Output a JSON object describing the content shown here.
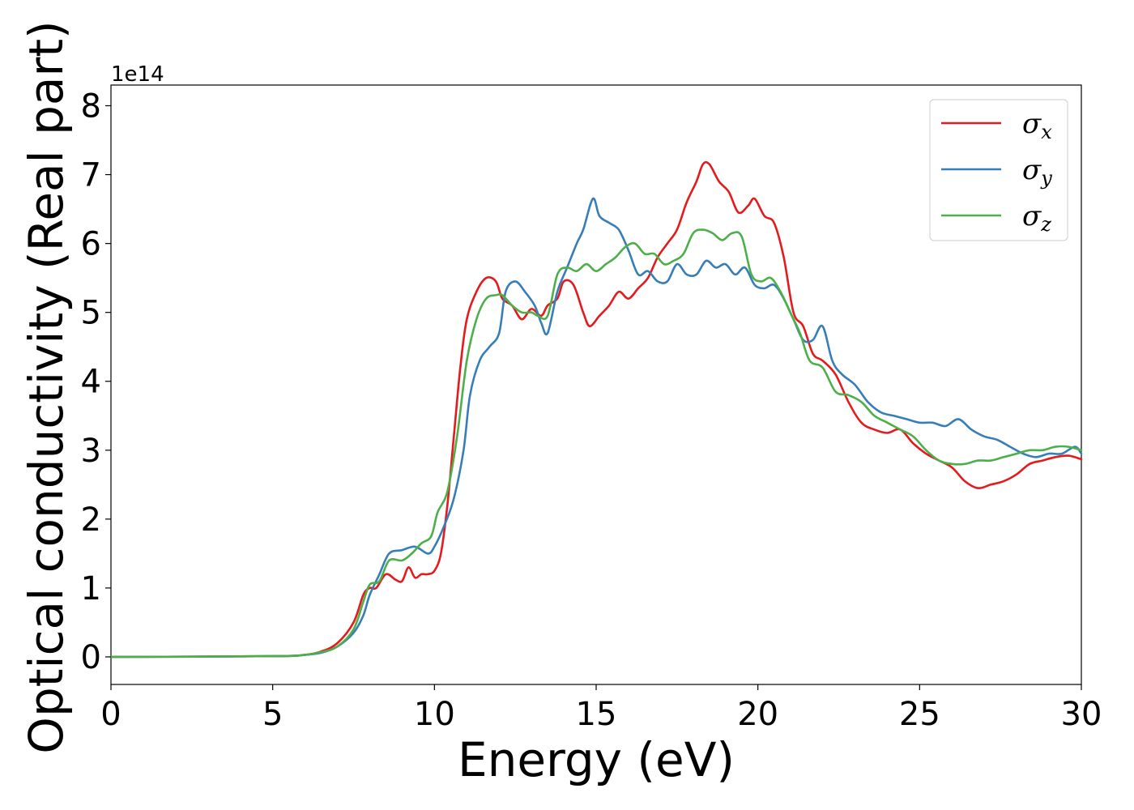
{
  "chart_data": {
    "type": "line",
    "xlabel": "Energy (eV)",
    "ylabel": "Optical conductivity (Real part)",
    "y_offset_label": "1e14",
    "xlim": [
      0,
      30
    ],
    "ylim": [
      -0.4,
      8.3
    ],
    "x_ticks": [
      "0",
      "5",
      "10",
      "15",
      "20",
      "25",
      "30"
    ],
    "y_ticks": [
      "0",
      "1",
      "2",
      "3",
      "4",
      "5",
      "6",
      "7",
      "8"
    ],
    "grid": false,
    "legend_position": "top-right",
    "series": [
      {
        "name": "σx",
        "symbol": "σ",
        "subscript": "x",
        "color": "#e41a1c",
        "points": [
          [
            0,
            0
          ],
          [
            5,
            0.01
          ],
          [
            6,
            0.03
          ],
          [
            6.5,
            0.08
          ],
          [
            7,
            0.2
          ],
          [
            7.5,
            0.5
          ],
          [
            7.8,
            0.9
          ],
          [
            8,
            1.0
          ],
          [
            8.2,
            1.0
          ],
          [
            8.5,
            1.2
          ],
          [
            8.8,
            1.12
          ],
          [
            9,
            1.1
          ],
          [
            9.2,
            1.3
          ],
          [
            9.4,
            1.15
          ],
          [
            9.6,
            1.2
          ],
          [
            9.8,
            1.2
          ],
          [
            10,
            1.25
          ],
          [
            10.2,
            1.5
          ],
          [
            10.4,
            2.2
          ],
          [
            10.6,
            3.2
          ],
          [
            10.8,
            4.2
          ],
          [
            11,
            4.9
          ],
          [
            11.3,
            5.3
          ],
          [
            11.6,
            5.5
          ],
          [
            11.9,
            5.45
          ],
          [
            12.1,
            5.2
          ],
          [
            12.4,
            5.1
          ],
          [
            12.7,
            4.9
          ],
          [
            13,
            5.05
          ],
          [
            13.3,
            4.95
          ],
          [
            13.5,
            5.1
          ],
          [
            13.8,
            5.2
          ],
          [
            14,
            5.45
          ],
          [
            14.3,
            5.4
          ],
          [
            14.6,
            5.0
          ],
          [
            14.8,
            4.8
          ],
          [
            15.1,
            4.95
          ],
          [
            15.4,
            5.1
          ],
          [
            15.7,
            5.3
          ],
          [
            16,
            5.2
          ],
          [
            16.3,
            5.35
          ],
          [
            16.6,
            5.5
          ],
          [
            16.9,
            5.8
          ],
          [
            17.2,
            6.0
          ],
          [
            17.5,
            6.2
          ],
          [
            17.8,
            6.6
          ],
          [
            18.1,
            6.9
          ],
          [
            18.3,
            7.15
          ],
          [
            18.5,
            7.15
          ],
          [
            18.8,
            6.9
          ],
          [
            19.1,
            6.75
          ],
          [
            19.4,
            6.45
          ],
          [
            19.7,
            6.55
          ],
          [
            19.9,
            6.65
          ],
          [
            20.2,
            6.4
          ],
          [
            20.5,
            6.3
          ],
          [
            20.8,
            5.8
          ],
          [
            21.1,
            5.0
          ],
          [
            21.4,
            4.8
          ],
          [
            21.7,
            4.4
          ],
          [
            22,
            4.3
          ],
          [
            22.4,
            4.1
          ],
          [
            22.8,
            3.7
          ],
          [
            23.2,
            3.4
          ],
          [
            23.6,
            3.3
          ],
          [
            24,
            3.25
          ],
          [
            24.4,
            3.3
          ],
          [
            24.8,
            3.1
          ],
          [
            25.2,
            2.95
          ],
          [
            25.6,
            2.85
          ],
          [
            26,
            2.75
          ],
          [
            26.4,
            2.55
          ],
          [
            26.8,
            2.45
          ],
          [
            27.2,
            2.5
          ],
          [
            27.6,
            2.55
          ],
          [
            28,
            2.65
          ],
          [
            28.4,
            2.8
          ],
          [
            28.8,
            2.85
          ],
          [
            29.2,
            2.9
          ],
          [
            29.6,
            2.92
          ],
          [
            30,
            2.87
          ]
        ]
      },
      {
        "name": "σy",
        "symbol": "σ",
        "subscript": "y",
        "color": "#377eb8",
        "points": [
          [
            0,
            0
          ],
          [
            5,
            0.01
          ],
          [
            6,
            0.03
          ],
          [
            6.5,
            0.06
          ],
          [
            7,
            0.15
          ],
          [
            7.5,
            0.35
          ],
          [
            7.8,
            0.6
          ],
          [
            8,
            0.9
          ],
          [
            8.3,
            1.2
          ],
          [
            8.6,
            1.5
          ],
          [
            9,
            1.55
          ],
          [
            9.4,
            1.6
          ],
          [
            9.8,
            1.5
          ],
          [
            10,
            1.6
          ],
          [
            10.3,
            1.9
          ],
          [
            10.6,
            2.3
          ],
          [
            10.9,
            3.0
          ],
          [
            11.1,
            3.8
          ],
          [
            11.4,
            4.3
          ],
          [
            11.7,
            4.5
          ],
          [
            12,
            4.7
          ],
          [
            12.2,
            5.3
          ],
          [
            12.5,
            5.45
          ],
          [
            12.8,
            5.3
          ],
          [
            13.1,
            5.1
          ],
          [
            13.3,
            4.85
          ],
          [
            13.5,
            4.7
          ],
          [
            13.8,
            5.3
          ],
          [
            14.1,
            5.65
          ],
          [
            14.4,
            6.0
          ],
          [
            14.6,
            6.2
          ],
          [
            14.9,
            6.65
          ],
          [
            15.1,
            6.4
          ],
          [
            15.4,
            6.3
          ],
          [
            15.7,
            6.2
          ],
          [
            16,
            5.9
          ],
          [
            16.3,
            5.55
          ],
          [
            16.6,
            5.6
          ],
          [
            16.9,
            5.45
          ],
          [
            17.2,
            5.45
          ],
          [
            17.5,
            5.7
          ],
          [
            17.8,
            5.55
          ],
          [
            18.1,
            5.55
          ],
          [
            18.4,
            5.75
          ],
          [
            18.7,
            5.65
          ],
          [
            19,
            5.7
          ],
          [
            19.3,
            5.55
          ],
          [
            19.6,
            5.65
          ],
          [
            19.9,
            5.4
          ],
          [
            20.2,
            5.35
          ],
          [
            20.5,
            5.4
          ],
          [
            20.8,
            5.2
          ],
          [
            21.1,
            4.9
          ],
          [
            21.4,
            4.6
          ],
          [
            21.7,
            4.6
          ],
          [
            22,
            4.8
          ],
          [
            22.3,
            4.3
          ],
          [
            22.6,
            4.1
          ],
          [
            23,
            3.95
          ],
          [
            23.4,
            3.7
          ],
          [
            23.8,
            3.55
          ],
          [
            24.2,
            3.5
          ],
          [
            24.6,
            3.45
          ],
          [
            25,
            3.4
          ],
          [
            25.4,
            3.4
          ],
          [
            25.8,
            3.35
          ],
          [
            26.2,
            3.45
          ],
          [
            26.6,
            3.3
          ],
          [
            27,
            3.2
          ],
          [
            27.4,
            3.15
          ],
          [
            27.8,
            3.05
          ],
          [
            28.2,
            2.95
          ],
          [
            28.6,
            2.9
          ],
          [
            29,
            2.95
          ],
          [
            29.4,
            2.95
          ],
          [
            29.8,
            3.05
          ],
          [
            30,
            2.95
          ]
        ]
      },
      {
        "name": "σz",
        "symbol": "σ",
        "subscript": "z",
        "color": "#4daf4a",
        "points": [
          [
            0,
            0
          ],
          [
            5,
            0.01
          ],
          [
            6,
            0.03
          ],
          [
            6.5,
            0.07
          ],
          [
            7,
            0.15
          ],
          [
            7.5,
            0.4
          ],
          [
            7.8,
            0.8
          ],
          [
            8,
            1.05
          ],
          [
            8.3,
            1.1
          ],
          [
            8.6,
            1.4
          ],
          [
            9,
            1.4
          ],
          [
            9.3,
            1.5
          ],
          [
            9.6,
            1.65
          ],
          [
            9.9,
            1.75
          ],
          [
            10.1,
            2.1
          ],
          [
            10.4,
            2.4
          ],
          [
            10.7,
            3.2
          ],
          [
            11,
            4.3
          ],
          [
            11.3,
            4.9
          ],
          [
            11.6,
            5.2
          ],
          [
            11.9,
            5.25
          ],
          [
            12.1,
            5.25
          ],
          [
            12.4,
            5.1
          ],
          [
            12.7,
            5.0
          ],
          [
            13,
            5.0
          ],
          [
            13.2,
            4.95
          ],
          [
            13.5,
            4.95
          ],
          [
            13.8,
            5.55
          ],
          [
            14.1,
            5.65
          ],
          [
            14.4,
            5.6
          ],
          [
            14.7,
            5.7
          ],
          [
            15,
            5.6
          ],
          [
            15.3,
            5.7
          ],
          [
            15.6,
            5.8
          ],
          [
            15.9,
            5.95
          ],
          [
            16.2,
            6.0
          ],
          [
            16.5,
            5.85
          ],
          [
            16.8,
            5.85
          ],
          [
            17.1,
            5.7
          ],
          [
            17.4,
            5.75
          ],
          [
            17.7,
            5.85
          ],
          [
            18,
            6.15
          ],
          [
            18.3,
            6.2
          ],
          [
            18.6,
            6.15
          ],
          [
            18.9,
            6.05
          ],
          [
            19.2,
            6.15
          ],
          [
            19.5,
            6.1
          ],
          [
            19.8,
            5.55
          ],
          [
            20.1,
            5.45
          ],
          [
            20.4,
            5.5
          ],
          [
            20.7,
            5.3
          ],
          [
            21,
            5.0
          ],
          [
            21.3,
            4.7
          ],
          [
            21.6,
            4.3
          ],
          [
            22,
            4.2
          ],
          [
            22.4,
            3.85
          ],
          [
            22.8,
            3.8
          ],
          [
            23.2,
            3.7
          ],
          [
            23.6,
            3.5
          ],
          [
            24,
            3.4
          ],
          [
            24.4,
            3.3
          ],
          [
            24.8,
            3.2
          ],
          [
            25.2,
            3.0
          ],
          [
            25.6,
            2.85
          ],
          [
            26,
            2.8
          ],
          [
            26.4,
            2.8
          ],
          [
            26.8,
            2.85
          ],
          [
            27.2,
            2.85
          ],
          [
            27.6,
            2.9
          ],
          [
            28,
            2.95
          ],
          [
            28.4,
            3.0
          ],
          [
            28.8,
            3.0
          ],
          [
            29.2,
            3.05
          ],
          [
            29.6,
            3.05
          ],
          [
            30,
            3.0
          ]
        ]
      }
    ]
  }
}
